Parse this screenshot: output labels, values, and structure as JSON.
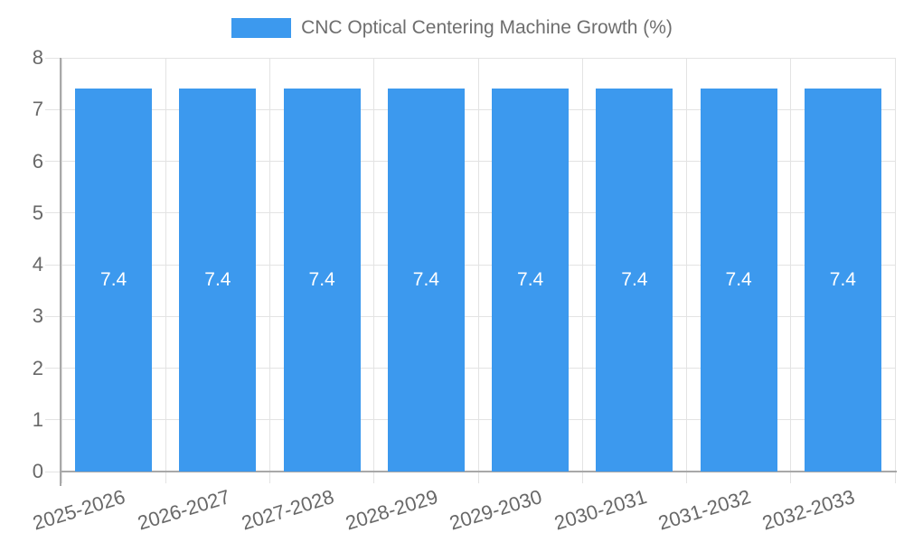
{
  "chart_data": {
    "type": "bar",
    "title": "CNC Optical Centering Machine Growth (%)",
    "categories": [
      "2025-2026",
      "2026-2027",
      "2027-2028",
      "2028-2029",
      "2029-2030",
      "2030-2031",
      "2031-2032",
      "2032-2033"
    ],
    "values": [
      7.4,
      7.4,
      7.4,
      7.4,
      7.4,
      7.4,
      7.4,
      7.4
    ],
    "bar_labels": [
      "7.4",
      "7.4",
      "7.4",
      "7.4",
      "7.4",
      "7.4",
      "7.4",
      "7.4"
    ],
    "xlabel": "",
    "ylabel": "",
    "ylim": [
      0,
      8
    ],
    "y_ticks": [
      0,
      1,
      2,
      3,
      4,
      5,
      6,
      7,
      8
    ],
    "grid": true,
    "legend_position": "top",
    "x_tick_rotation_deg": -17,
    "colors": {
      "bar": "#3c99ee",
      "bar_label": "#ffffff",
      "grid": "#e3e3e3",
      "axis_line": "#a8a8a8",
      "tick_text": "#686868",
      "title_text": "#6e6e6e",
      "background": "#ffffff"
    }
  }
}
